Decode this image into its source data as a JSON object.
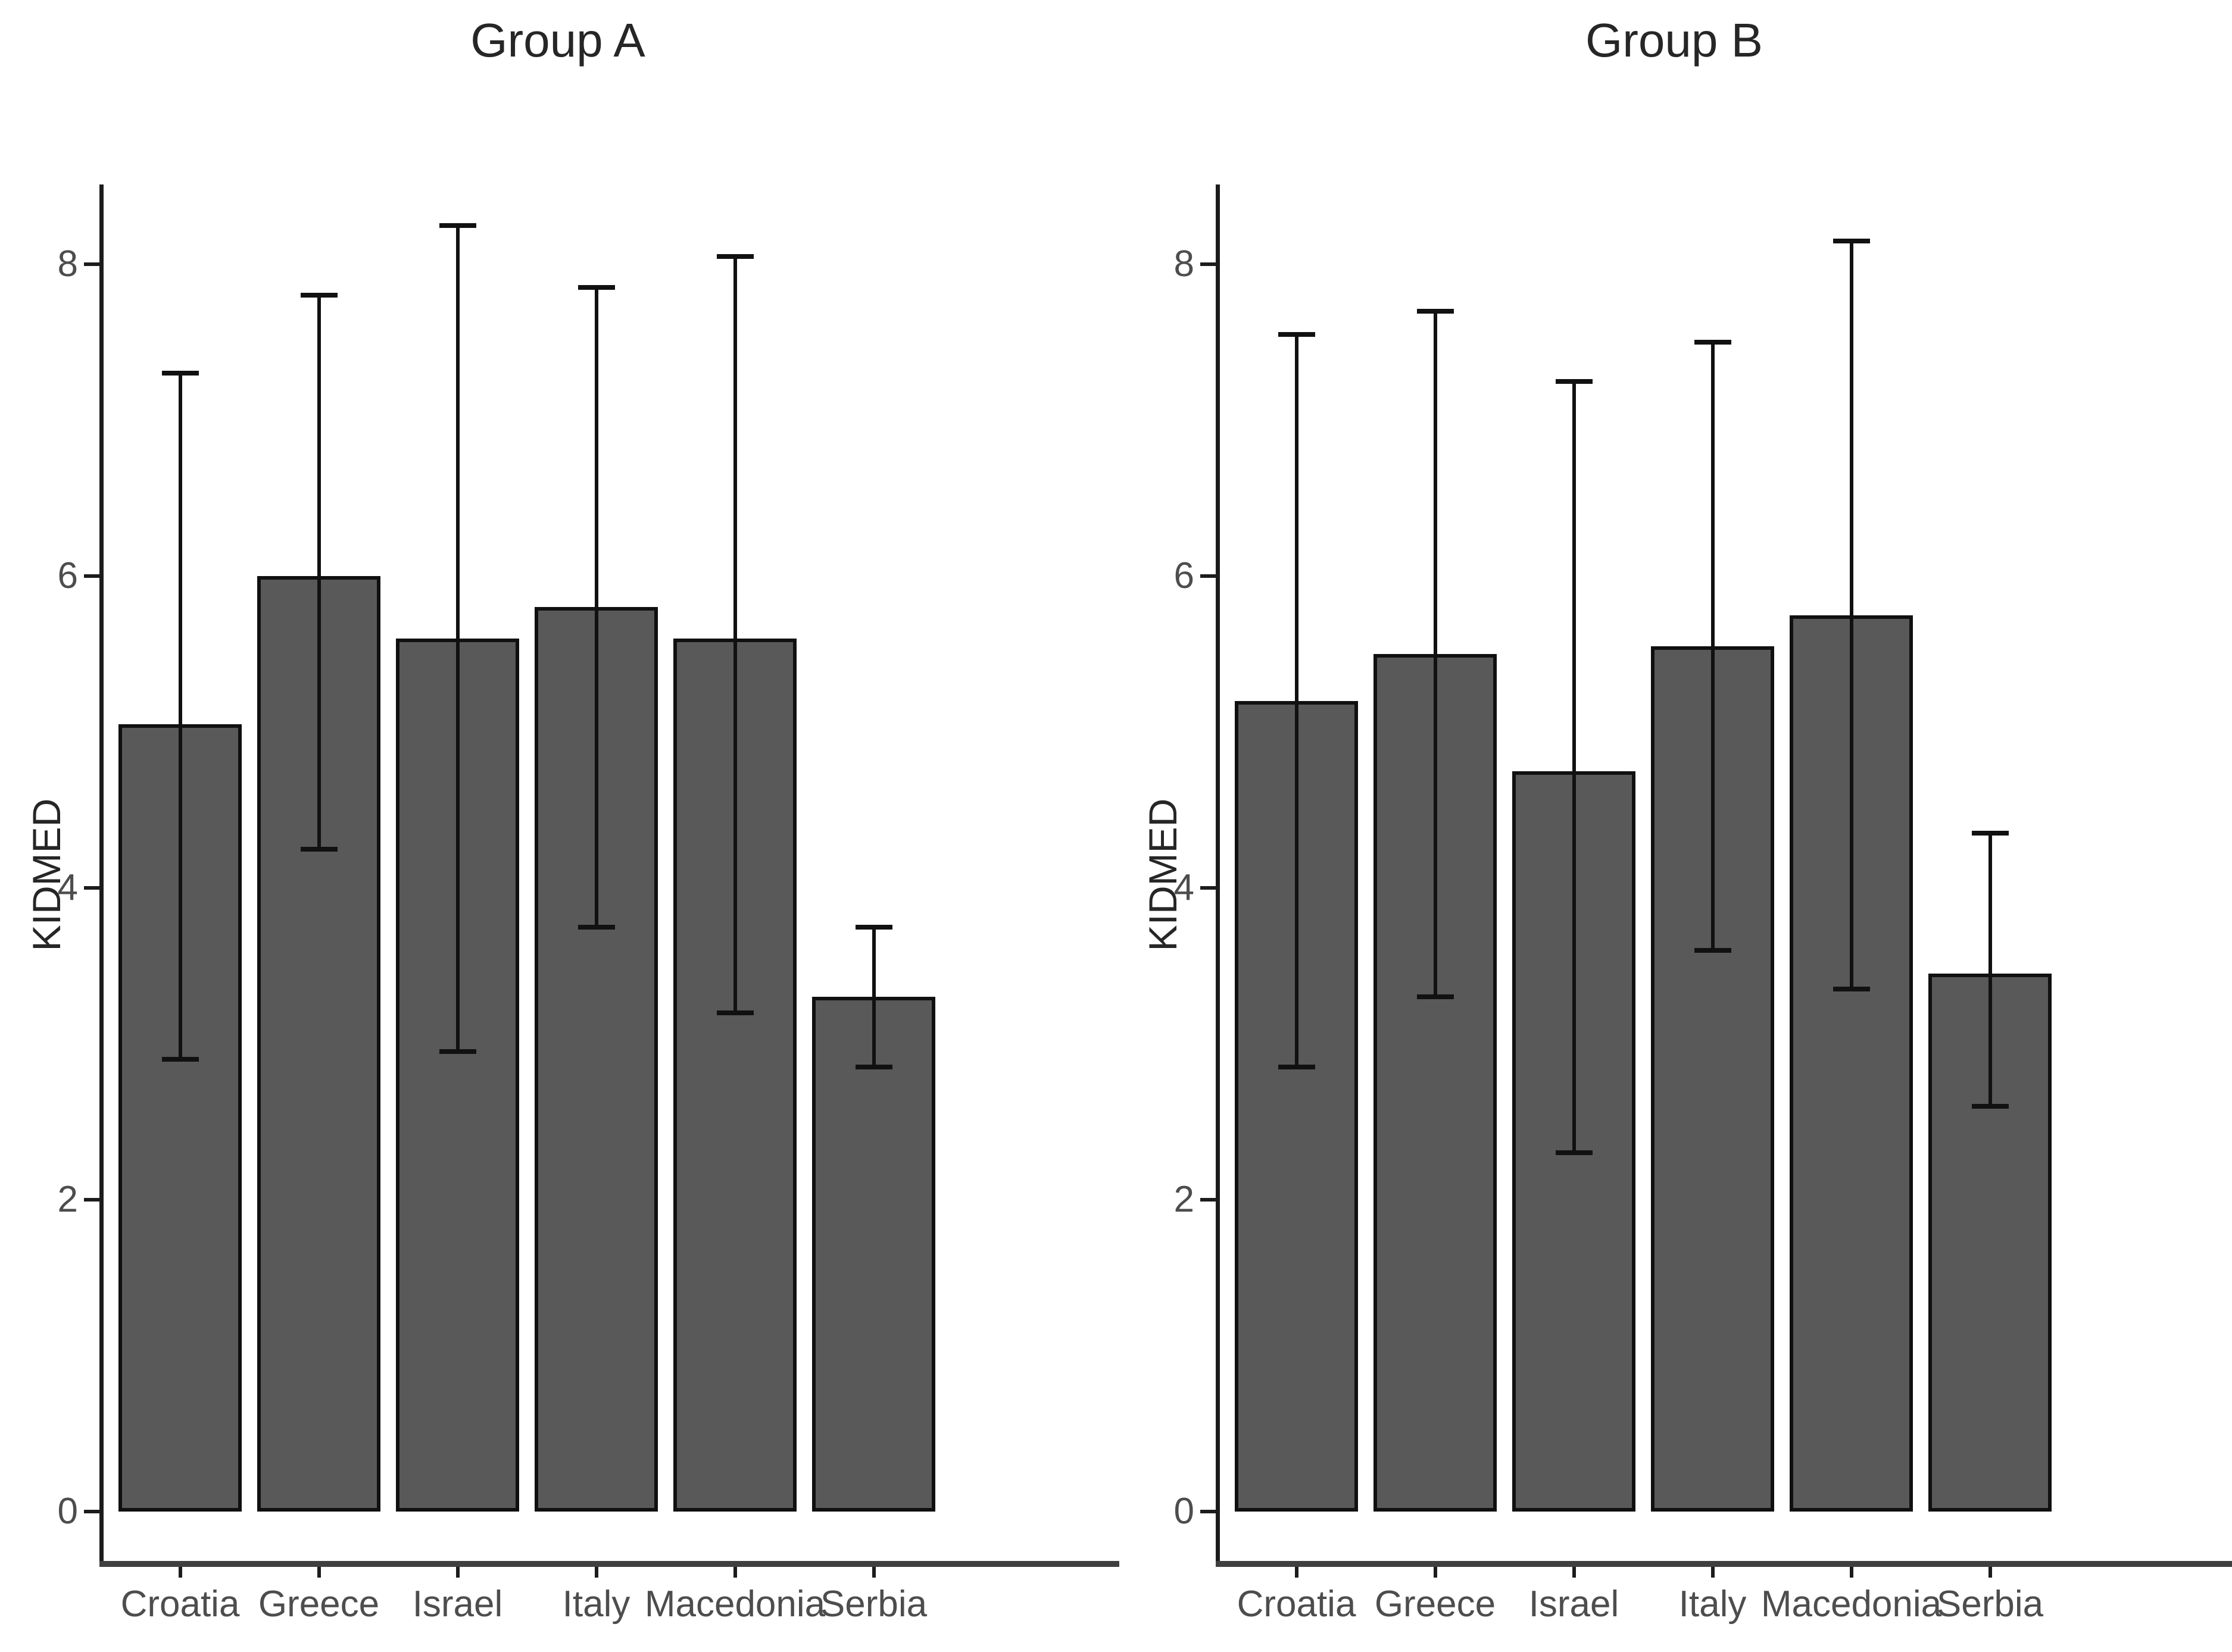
{
  "figure_background": "#ffffff",
  "colors": {
    "background": "#ffffff",
    "bar_fill": "#595959",
    "bar_border": "#101010",
    "whisker": "#111111",
    "axis_line": "#1c1c1c",
    "x_axis_line": "#3f3f3f",
    "text_primary": "#262626",
    "text_secondary": "#4d4d4d"
  },
  "chart_data": [
    {
      "type": "bar",
      "title": "Group A",
      "xlabel": "",
      "ylabel": "KIDMED",
      "ylim": [
        0,
        8.6
      ],
      "yticks": [
        0,
        2,
        4,
        6,
        8
      ],
      "grid": false,
      "legend": false,
      "error_bars": true,
      "categories": [
        "Croatia",
        "Greece",
        "Israel",
        "Italy",
        "Macedonia",
        "Serbia"
      ],
      "values": [
        5.05,
        6.0,
        5.6,
        5.8,
        5.6,
        3.3
      ],
      "error_low": [
        2.9,
        4.25,
        2.95,
        3.75,
        3.2,
        2.85
      ],
      "error_high": [
        7.3,
        7.8,
        8.25,
        7.85,
        8.05,
        3.75
      ]
    },
    {
      "type": "bar",
      "title": "Group B",
      "xlabel": "",
      "ylabel": "KIDMED",
      "ylim": [
        0,
        8.6
      ],
      "yticks": [
        0,
        2,
        4,
        6,
        8
      ],
      "grid": false,
      "legend": false,
      "error_bars": true,
      "categories": [
        "Croatia",
        "Greece",
        "Israel",
        "Italy",
        "Macedonia",
        "Serbia"
      ],
      "values": [
        5.2,
        5.5,
        4.75,
        5.55,
        5.75,
        3.45
      ],
      "error_low": [
        2.85,
        3.3,
        2.3,
        3.6,
        3.35,
        2.6
      ],
      "error_high": [
        7.55,
        7.7,
        7.25,
        7.5,
        8.15,
        4.35
      ]
    }
  ]
}
